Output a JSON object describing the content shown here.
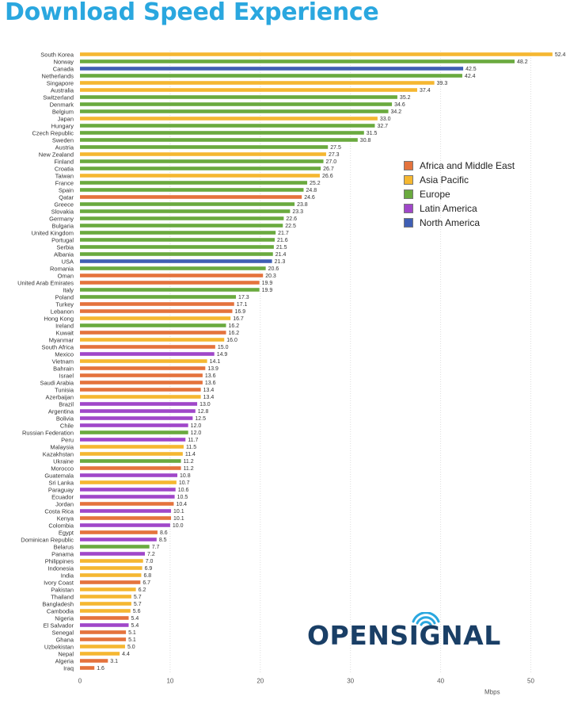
{
  "title": "Download Speed Experience",
  "logo_text": "OPENSIGNAL",
  "colors": {
    "title": "#2aa7df",
    "logo": "#1a3f66",
    "logo_signal": "#2aa7df",
    "grid": "#dddddd"
  },
  "legend": [
    {
      "name": "Africa and Middle East",
      "color": "#e4733d"
    },
    {
      "name": "Asia Pacific",
      "color": "#f5b731"
    },
    {
      "name": "Europe",
      "color": "#6aaa3f"
    },
    {
      "name": "Latin America",
      "color": "#a047c9"
    },
    {
      "name": "North America",
      "color": "#3f5fb4"
    }
  ],
  "chart_data": {
    "type": "bar",
    "orientation": "horizontal",
    "xlabel": "Mbps",
    "xlim": [
      0,
      54
    ],
    "xticks": [
      0,
      10,
      20,
      30,
      40,
      50
    ],
    "grid": true,
    "legend_position": "right",
    "categories": [
      "South Korea",
      "Norway",
      "Canada",
      "Netherlands",
      "Singapore",
      "Australia",
      "Switzerland",
      "Denmark",
      "Belgium",
      "Japan",
      "Hungary",
      "Czech Republic",
      "Sweden",
      "Austria",
      "New Zealand",
      "Finland",
      "Croatia",
      "Taiwan",
      "France",
      "Spain",
      "Qatar",
      "Greece",
      "Slovakia",
      "Germany",
      "Bulgaria",
      "United Kingdom",
      "Portugal",
      "Serbia",
      "Albania",
      "USA",
      "Romania",
      "Oman",
      "United Arab Emirates",
      "Italy",
      "Poland",
      "Turkey",
      "Lebanon",
      "Hong Kong",
      "Ireland",
      "Kuwait",
      "Myanmar",
      "South Africa",
      "Mexico",
      "Vietnam",
      "Bahrain",
      "Israel",
      "Saudi Arabia",
      "Tunisia",
      "Azerbaijan",
      "Brazil",
      "Argentina",
      "Bolivia",
      "Chile",
      "Russian Federation",
      "Peru",
      "Malaysia",
      "Kazakhstan",
      "Ukraine",
      "Morocco",
      "Guatemala",
      "Sri Lanka",
      "Paraguay",
      "Ecuador",
      "Jordan",
      "Costa Rica",
      "Kenya",
      "Colombia",
      "Egypt",
      "Dominican Republic",
      "Belarus",
      "Panama",
      "Philippines",
      "Indonesia",
      "India",
      "Ivory Coast",
      "Pakistan",
      "Thailand",
      "Bangladesh",
      "Cambodia",
      "Nigeria",
      "El Salvador",
      "Senegal",
      "Ghana",
      "Uzbekistan",
      "Nepal",
      "Algeria",
      "Iraq"
    ],
    "values": [
      52.4,
      48.2,
      42.5,
      42.4,
      39.3,
      37.4,
      35.2,
      34.6,
      34.2,
      33.0,
      32.7,
      31.5,
      30.8,
      27.5,
      27.3,
      27.0,
      26.7,
      26.6,
      25.2,
      24.8,
      24.6,
      23.8,
      23.3,
      22.6,
      22.5,
      21.7,
      21.6,
      21.5,
      21.4,
      21.3,
      20.6,
      20.3,
      19.9,
      19.9,
      17.3,
      17.1,
      16.9,
      16.7,
      16.2,
      16.2,
      16.0,
      15.0,
      14.9,
      14.1,
      13.9,
      13.6,
      13.6,
      13.4,
      13.4,
      13.0,
      12.8,
      12.5,
      12.0,
      12.0,
      11.7,
      11.5,
      11.4,
      11.2,
      11.2,
      10.8,
      10.7,
      10.6,
      10.5,
      10.4,
      10.1,
      10.1,
      10.0,
      8.6,
      8.5,
      7.7,
      7.2,
      7.0,
      6.9,
      6.8,
      6.7,
      6.2,
      5.7,
      5.7,
      5.6,
      5.4,
      5.4,
      5.1,
      5.1,
      5.0,
      4.4,
      3.1,
      1.6
    ],
    "value_labels": [
      "52.4",
      "48.2",
      "42.5",
      "42.4",
      "39.3",
      "37.4",
      "35.2",
      "34.6",
      "34.2",
      "33.0",
      "32.7",
      "31.5",
      "30.8",
      "27.5",
      "27.3",
      "27.0",
      "26.7",
      "26.6",
      "25.2",
      "24.8",
      "24.6",
      "23.8",
      "23.3",
      "22.6",
      "22.5",
      "21.7",
      "21.6",
      "21.5",
      "21.4",
      "21.3",
      "20.6",
      "20.3",
      "19.9",
      "19.9",
      "17.3",
      "17.1",
      "16.9",
      "16.7",
      "16.2",
      "16.2",
      "16.0",
      "15.0",
      "14.9",
      "14.1",
      "13.9",
      "13.6",
      "13.6",
      "13.4",
      "13.4",
      "13.0",
      "12.8",
      "12.5",
      "12.0",
      "12.0",
      "11.7",
      "11.5",
      "11.4",
      "11.2",
      "11.2",
      "10.8",
      "10.7",
      "10.6",
      "10.5",
      "10.4",
      "10.1",
      "10.1",
      "10.0",
      "8.6",
      "8.5",
      "7.7",
      "7.2",
      "7.0",
      "6.9",
      "6.8",
      "6.7",
      "6.2",
      "5.7",
      "5.7",
      "5.6",
      "5.4",
      "5.4",
      "5.1",
      "5.1",
      "5.0",
      "4.4",
      "3.1",
      "1.6"
    ],
    "regions": [
      "Asia Pacific",
      "Europe",
      "North America",
      "Europe",
      "Asia Pacific",
      "Asia Pacific",
      "Europe",
      "Europe",
      "Europe",
      "Asia Pacific",
      "Europe",
      "Europe",
      "Europe",
      "Europe",
      "Asia Pacific",
      "Europe",
      "Europe",
      "Asia Pacific",
      "Europe",
      "Europe",
      "Africa and Middle East",
      "Europe",
      "Europe",
      "Europe",
      "Europe",
      "Europe",
      "Europe",
      "Europe",
      "Europe",
      "North America",
      "Europe",
      "Africa and Middle East",
      "Africa and Middle East",
      "Europe",
      "Europe",
      "Africa and Middle East",
      "Africa and Middle East",
      "Asia Pacific",
      "Europe",
      "Africa and Middle East",
      "Asia Pacific",
      "Africa and Middle East",
      "Latin America",
      "Asia Pacific",
      "Africa and Middle East",
      "Africa and Middle East",
      "Africa and Middle East",
      "Africa and Middle East",
      "Asia Pacific",
      "Latin America",
      "Latin America",
      "Latin America",
      "Latin America",
      "Europe",
      "Latin America",
      "Asia Pacific",
      "Asia Pacific",
      "Europe",
      "Africa and Middle East",
      "Latin America",
      "Asia Pacific",
      "Latin America",
      "Latin America",
      "Africa and Middle East",
      "Latin America",
      "Africa and Middle East",
      "Latin America",
      "Africa and Middle East",
      "Latin America",
      "Europe",
      "Latin America",
      "Asia Pacific",
      "Asia Pacific",
      "Asia Pacific",
      "Africa and Middle East",
      "Asia Pacific",
      "Asia Pacific",
      "Asia Pacific",
      "Asia Pacific",
      "Africa and Middle East",
      "Latin America",
      "Africa and Middle East",
      "Africa and Middle East",
      "Asia Pacific",
      "Asia Pacific",
      "Africa and Middle East",
      "Africa and Middle East"
    ]
  }
}
